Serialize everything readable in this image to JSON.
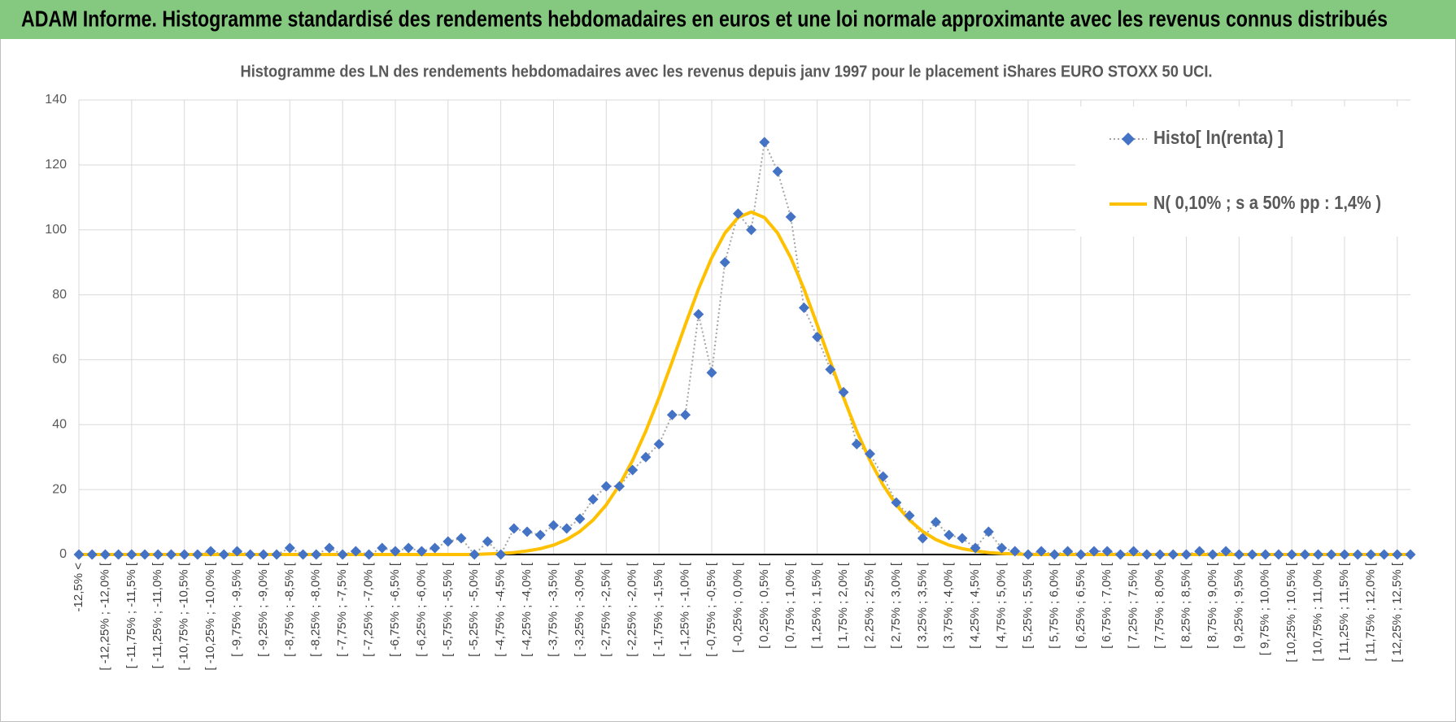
{
  "header": {
    "title": "ADAM Informe. Histogramme standardisé des rendements hebdomadaires en euros et une loi normale approximante avec les revenus connus distribués"
  },
  "chart_data": {
    "type": "line",
    "title": "Histogramme des LN des rendements hebdomadaires avec les revenus depuis janv 1997 pour le placement iShares EURO STOXX 50 UCI.",
    "categories": [
      "-12,5% <",
      null,
      "[ -12,25% ; -12,0% [",
      null,
      "[ -11,75% ; -11,5% [",
      null,
      "[ -11,25% ; -11,0% [",
      null,
      "[ -10,75% ; -10,5% [",
      null,
      "[ -10,25% ; -10,0% [",
      null,
      "[ -9,75% ; -9,5% [",
      null,
      "[ -9,25% ; -9,0% [",
      null,
      "[ -8,75% ; -8,5% [",
      null,
      "[ -8,25% ; -8,0% [",
      null,
      "[ -7,75% ; -7,5% [",
      null,
      "[ -7,25% ; -7,0% [",
      null,
      "[ -6,75% ; -6,5% [",
      null,
      "[ -6,25% ; -6,0% [",
      null,
      "[ -5,75% ; -5,5% [",
      null,
      "[ -5,25% ; -5,0% [",
      null,
      "[ -4,75% ; -4,5% [",
      null,
      "[ -4,25% ; -4,0% [",
      null,
      "[ -3,75% ; -3,5% [",
      null,
      "[ -3,25% ; -3,0% [",
      null,
      "[ -2,75% ; -2,5% [",
      null,
      "[ -2,25% ; -2,0% [",
      null,
      "[ -1,75% ; -1,5% [",
      null,
      "[ -1,25% ; -1,0% [",
      null,
      "[ -0,75% ; -0,5% [",
      null,
      "[ -0,25% ; 0,0% [",
      null,
      "[ 0,25% ; 0,5% [",
      null,
      "[ 0,75% ; 1,0% [",
      null,
      "[ 1,25% ; 1,5% [",
      null,
      "[ 1,75% ; 2,0% [",
      null,
      "[ 2,25% ; 2,5% [",
      null,
      "[ 2,75% ; 3,0% [",
      null,
      "[ 3,25% ; 3,5% [",
      null,
      "[ 3,75% ; 4,0% [",
      null,
      "[ 4,25% ; 4,5% [",
      null,
      "[ 4,75% ; 5,0% [",
      null,
      "[ 5,25% ; 5,5% [",
      null,
      "[ 5,75% ; 6,0% [",
      null,
      "[ 6,25% ; 6,5% [",
      null,
      "[ 6,75% ; 7,0% [",
      null,
      "[ 7,25% ; 7,5% [",
      null,
      "[ 7,75% ; 8,0% [",
      null,
      "[ 8,25% ; 8,5% [",
      null,
      "[ 8,75% ; 9,0% [",
      null,
      "[ 9,25% ; 9,5% [",
      null,
      "[ 9,75% ; 10,0% [",
      null,
      "[ 10,25% ; 10,5% [",
      null,
      "[ 10,75% ; 11,0% [",
      null,
      "[ 11,25% ; 11,5% [",
      null,
      "[ 11,75% ; 12,0% [",
      null,
      "[ 12,25% ; 12,5% [",
      null
    ],
    "series": [
      {
        "name": "Histo[ ln(renta) ]",
        "color": "#4472c4",
        "values": [
          0,
          0,
          0,
          0,
          0,
          0,
          0,
          0,
          0,
          0,
          1,
          0,
          1,
          0,
          0,
          0,
          2,
          0,
          0,
          2,
          0,
          1,
          0,
          2,
          1,
          2,
          1,
          2,
          4,
          5,
          0,
          4,
          0,
          8,
          7,
          6,
          9,
          8,
          11,
          17,
          21,
          21,
          26,
          30,
          34,
          43,
          43,
          74,
          56,
          90,
          105,
          100,
          127,
          118,
          104,
          76,
          67,
          57,
          50,
          34,
          31,
          24,
          16,
          12,
          5,
          10,
          6,
          5,
          2,
          7,
          2,
          1,
          0,
          1,
          0,
          1,
          0,
          1,
          1,
          0,
          1,
          0,
          0,
          0,
          0,
          1,
          0,
          1,
          0,
          0,
          0,
          0,
          0,
          0,
          0,
          0,
          0,
          0,
          0,
          0,
          0,
          0
        ]
      },
      {
        "name": "N( 0,10% ; s a 50% pp : 1,4% )",
        "color": "#ffc000",
        "values": [
          0,
          0,
          0,
          0,
          0,
          0,
          0,
          0,
          0,
          0,
          0,
          0,
          0,
          0,
          0,
          0,
          0,
          0,
          0,
          0,
          0,
          0,
          0,
          0,
          0,
          0,
          0,
          0,
          0,
          0,
          0,
          0.2,
          0.3,
          0.6,
          1.1,
          1.8,
          2.9,
          4.6,
          7.1,
          10.6,
          15.3,
          21.4,
          29.0,
          38.0,
          48.3,
          59.4,
          70.8,
          81.8,
          91.4,
          99.0,
          103.8,
          105.5,
          103.8,
          99.0,
          91.4,
          81.8,
          70.8,
          59.4,
          48.3,
          38.0,
          29.0,
          21.4,
          15.3,
          10.6,
          7.1,
          4.6,
          2.9,
          1.8,
          1.1,
          0.6,
          0.3,
          0.2,
          0,
          0,
          0,
          0,
          0,
          0,
          0,
          0,
          0,
          0,
          0,
          0,
          0,
          0,
          0,
          0,
          0,
          0,
          0,
          0,
          0,
          0,
          0,
          0,
          0,
          0,
          0,
          0,
          0,
          0
        ]
      }
    ],
    "ylim": [
      0,
      140
    ],
    "yticks": [
      0,
      20,
      40,
      60,
      80,
      100,
      120,
      140
    ],
    "grid": true,
    "legend": "upper right"
  }
}
